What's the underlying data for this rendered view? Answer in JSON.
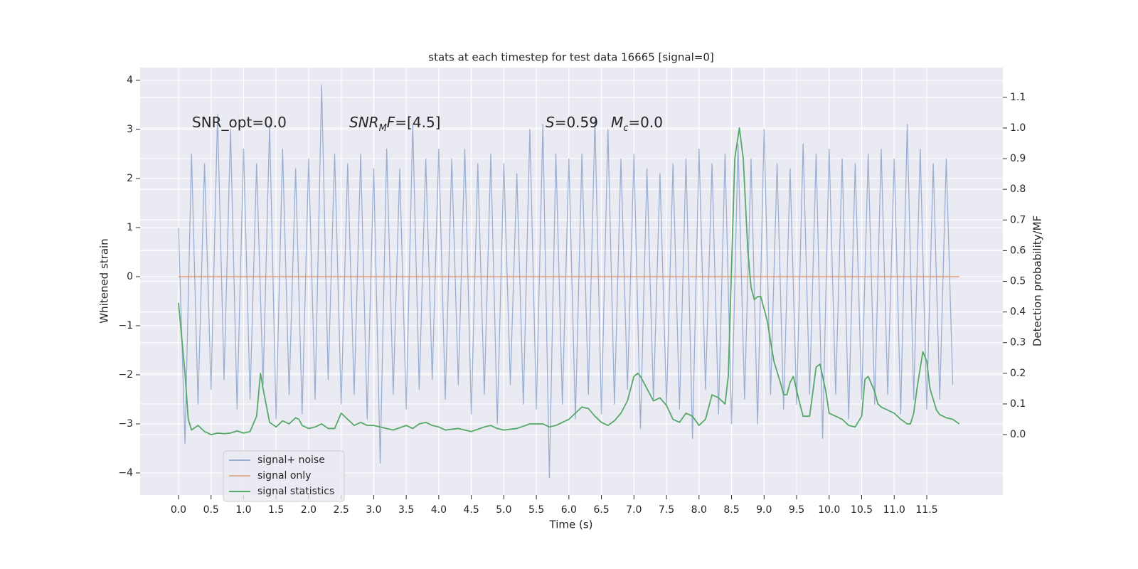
{
  "chart_data": {
    "type": "line",
    "title": "stats at each timestep for test data 16665 [signal=0]",
    "x_label": "Time (s)",
    "y_label": "Whitened strain",
    "y2_label": "Detection probability/MF",
    "xlim": [
      -0.59,
      12.67
    ],
    "ylim": [
      -4.45,
      4.26
    ],
    "y2lim": [
      -0.197,
      1.197
    ],
    "grid": true,
    "legend": "lower left",
    "xticks": [
      {
        "value": 0,
        "label": "0.0"
      },
      {
        "value": 0.5,
        "label": "0.5"
      },
      {
        "value": 1,
        "label": "1.0"
      },
      {
        "value": 1.5,
        "label": "1.5"
      },
      {
        "value": 2,
        "label": "2.0"
      },
      {
        "value": 2.5,
        "label": "2.5"
      },
      {
        "value": 3,
        "label": "3.0"
      },
      {
        "value": 3.5,
        "label": "3.5"
      },
      {
        "value": 4,
        "label": "4.0"
      },
      {
        "value": 4.5,
        "label": "4.5"
      },
      {
        "value": 5,
        "label": "5.0"
      },
      {
        "value": 5.5,
        "label": "5.5"
      },
      {
        "value": 6,
        "label": "6.0"
      },
      {
        "value": 6.5,
        "label": "6.5"
      },
      {
        "value": 7,
        "label": "7.0"
      },
      {
        "value": 7.5,
        "label": "7.5"
      },
      {
        "value": 8,
        "label": "8.0"
      },
      {
        "value": 8.5,
        "label": "8.5"
      },
      {
        "value": 9,
        "label": "9.0"
      },
      {
        "value": 9.5,
        "label": "9.5"
      },
      {
        "value": 10,
        "label": "10.0"
      },
      {
        "value": 10.5,
        "label": "10.5"
      },
      {
        "value": 11,
        "label": "11.0"
      },
      {
        "value": 11.5,
        "label": "11.5"
      }
    ],
    "yticks": [
      {
        "value": -4,
        "label": "−4"
      },
      {
        "value": -3,
        "label": "−3"
      },
      {
        "value": -2,
        "label": "−2"
      },
      {
        "value": -1,
        "label": "−1"
      },
      0,
      1,
      2,
      3,
      4
    ],
    "y2ticks": [
      {
        "value": 0,
        "label": "0.0"
      },
      {
        "value": 0.1,
        "label": "0.1"
      },
      {
        "value": 0.2,
        "label": "0.2"
      },
      {
        "value": 0.3,
        "label": "0.3"
      },
      {
        "value": 0.4,
        "label": "0.4"
      },
      {
        "value": 0.5,
        "label": "0.5"
      },
      {
        "value": 0.6,
        "label": "0.6"
      },
      {
        "value": 0.7,
        "label": "0.7"
      },
      {
        "value": 0.8,
        "label": "0.8"
      },
      {
        "value": 0.9,
        "label": "0.9"
      },
      {
        "value": 1,
        "label": "1.0"
      },
      {
        "value": 1.1,
        "label": "1.1"
      }
    ],
    "annotations": [
      [
        {
          "text": "SNR_opt=0.0"
        }
      ],
      [
        {
          "text": "SNR",
          "italic": true
        },
        {
          "text": "M",
          "italic": true,
          "sub": true
        },
        {
          "text": "F",
          "italic": true
        },
        {
          "text": "=[4.5]"
        }
      ],
      [
        {
          "text": "S",
          "italic": true
        },
        {
          "text": "=0.59"
        }
      ],
      [
        {
          "text": "M",
          "italic": true
        },
        {
          "text": "c",
          "italic": true,
          "sub": true
        },
        {
          "text": "=0.0"
        }
      ]
    ],
    "series": [
      {
        "name": "signal+ noise",
        "color": "#4c72b0",
        "opacity": 0.5,
        "x": [
          0,
          0.1,
          0.2,
          0.3,
          0.4,
          0.5,
          0.6,
          0.7,
          0.8,
          0.9,
          1,
          1.1,
          1.2,
          1.3,
          1.4,
          1.5,
          1.6,
          1.7,
          1.8,
          1.9,
          2,
          2.1,
          2.2,
          2.3,
          2.4,
          2.5,
          2.6,
          2.7,
          2.8,
          2.9,
          3,
          3.1,
          3.2,
          3.3,
          3.4,
          3.5,
          3.6,
          3.7,
          3.8,
          3.9,
          4,
          4.1,
          4.2,
          4.3,
          4.4,
          4.5,
          4.6,
          4.7,
          4.8,
          4.9,
          5,
          5.1,
          5.2,
          5.3,
          5.4,
          5.5,
          5.6,
          5.7,
          5.8,
          5.9,
          6,
          6.1,
          6.2,
          6.3,
          6.4,
          6.5,
          6.6,
          6.7,
          6.8,
          6.9,
          7,
          7.1,
          7.2,
          7.3,
          7.4,
          7.5,
          7.6,
          7.7,
          7.8,
          7.9,
          8,
          8.1,
          8.2,
          8.3,
          8.4,
          8.5,
          8.6,
          8.7,
          8.8,
          8.9,
          9,
          9.1,
          9.2,
          9.3,
          9.4,
          9.5,
          9.6,
          9.7,
          9.8,
          9.9,
          10,
          10.1,
          10.2,
          10.3,
          10.4,
          10.5,
          10.6,
          10.7,
          10.8,
          10.9,
          11,
          11.1,
          11.2,
          11.3,
          11.4,
          11.5,
          11.6,
          11.7,
          11.8,
          11.9
        ],
        "values": [
          1.0,
          -3.4,
          2.5,
          -2.6,
          2.3,
          -2.3,
          3.3,
          -2.1,
          3.0,
          -2.7,
          2.6,
          -2.5,
          2.3,
          -2.2,
          3.1,
          -2.9,
          2.6,
          -2.4,
          2.2,
          -2.8,
          2.4,
          -2.5,
          3.9,
          -2.1,
          2.5,
          -2.6,
          2.3,
          -2.4,
          2.5,
          -2.9,
          2.2,
          -3.8,
          2.6,
          -2.4,
          2.2,
          -2.7,
          3.1,
          -2.3,
          2.4,
          -2.1,
          2.6,
          -2.5,
          2.4,
          -2.2,
          2.6,
          -2.8,
          2.3,
          -2.4,
          2.5,
          -3.0,
          2.3,
          -2.2,
          2.1,
          -2.6,
          3.0,
          -2.7,
          3.1,
          -4.1,
          2.5,
          -2.6,
          2.4,
          -2.9,
          2.5,
          -2.4,
          3.2,
          -2.8,
          3.0,
          -2.6,
          2.4,
          -2.3,
          2.5,
          -3.1,
          2.2,
          -2.5,
          2.1,
          -2.6,
          2.3,
          -2.7,
          2.4,
          -3.3,
          2.6,
          -2.3,
          2.3,
          -2.8,
          2.5,
          -3.0,
          2.7,
          -2.5,
          2.4,
          -3.0,
          3.0,
          -2.4,
          2.3,
          -2.7,
          2.2,
          -2.6,
          2.7,
          -2.4,
          2.5,
          -3.3,
          2.6,
          -2.4,
          2.4,
          -2.9,
          2.3,
          -2.5,
          2.5,
          -2.6,
          2.6,
          -2.4,
          2.4,
          -2.8,
          3.1,
          -2.5,
          2.6,
          -2.7,
          2.3,
          -2.5,
          2.4,
          -2.2
        ]
      },
      {
        "name": "signal only",
        "color": "#dd8452",
        "opacity": 0.6,
        "x": [
          0,
          12
        ],
        "values": [
          0,
          0
        ]
      },
      {
        "name": "signal statistics",
        "color": "#55a868",
        "opacity": 1,
        "axis": "y2",
        "x": [
          0,
          0.1,
          0.15,
          0.2,
          0.3,
          0.4,
          0.5,
          0.6,
          0.7,
          0.8,
          0.9,
          1.0,
          1.1,
          1.2,
          1.26,
          1.3,
          1.4,
          1.5,
          1.6,
          1.7,
          1.8,
          1.85,
          1.9,
          2.0,
          2.1,
          2.2,
          2.3,
          2.4,
          2.5,
          2.6,
          2.7,
          2.8,
          2.9,
          3.0,
          3.1,
          3.2,
          3.3,
          3.5,
          3.6,
          3.7,
          3.8,
          3.9,
          4.0,
          4.1,
          4.3,
          4.5,
          4.7,
          4.8,
          4.9,
          5.0,
          5.2,
          5.4,
          5.6,
          5.7,
          5.8,
          6.0,
          6.1,
          6.2,
          6.3,
          6.4,
          6.5,
          6.6,
          6.7,
          6.8,
          6.9,
          7.0,
          7.06,
          7.1,
          7.2,
          7.3,
          7.4,
          7.5,
          7.6,
          7.7,
          7.8,
          7.9,
          8.0,
          8.1,
          8.2,
          8.3,
          8.4,
          8.45,
          8.55,
          8.62,
          8.68,
          8.75,
          8.8,
          8.85,
          8.9,
          8.95,
          9.05,
          9.15,
          9.25,
          9.3,
          9.35,
          9.4,
          9.45,
          9.55,
          9.6,
          9.7,
          9.8,
          9.86,
          9.95,
          10.0,
          10.1,
          10.2,
          10.3,
          10.4,
          10.5,
          10.55,
          10.6,
          10.7,
          10.75,
          10.8,
          10.9,
          11.0,
          11.1,
          11.2,
          11.25,
          11.3,
          11.35,
          11.44,
          11.5,
          11.55,
          11.65,
          11.7,
          11.8,
          11.9,
          12.0
        ],
        "values": [
          0.43,
          0.2,
          0.05,
          0.015,
          0.03,
          0.01,
          0.0,
          0.005,
          0.003,
          0.005,
          0.012,
          0.005,
          0.01,
          0.06,
          0.2,
          0.15,
          0.04,
          0.025,
          0.045,
          0.035,
          0.055,
          0.05,
          0.03,
          0.02,
          0.025,
          0.035,
          0.02,
          0.02,
          0.07,
          0.05,
          0.03,
          0.04,
          0.03,
          0.03,
          0.025,
          0.02,
          0.015,
          0.03,
          0.02,
          0.035,
          0.04,
          0.03,
          0.025,
          0.015,
          0.02,
          0.01,
          0.025,
          0.03,
          0.02,
          0.015,
          0.02,
          0.035,
          0.035,
          0.025,
          0.03,
          0.05,
          0.07,
          0.09,
          0.085,
          0.06,
          0.04,
          0.03,
          0.045,
          0.07,
          0.11,
          0.19,
          0.2,
          0.19,
          0.15,
          0.11,
          0.12,
          0.095,
          0.05,
          0.04,
          0.07,
          0.06,
          0.03,
          0.05,
          0.13,
          0.12,
          0.1,
          0.19,
          0.9,
          1.0,
          0.9,
          0.6,
          0.48,
          0.44,
          0.45,
          0.45,
          0.37,
          0.24,
          0.17,
          0.13,
          0.13,
          0.17,
          0.19,
          0.1,
          0.06,
          0.06,
          0.22,
          0.23,
          0.14,
          0.07,
          0.06,
          0.05,
          0.03,
          0.025,
          0.06,
          0.18,
          0.19,
          0.14,
          0.1,
          0.09,
          0.08,
          0.07,
          0.05,
          0.035,
          0.035,
          0.07,
          0.15,
          0.27,
          0.24,
          0.15,
          0.08,
          0.065,
          0.055,
          0.05,
          0.035
        ]
      }
    ]
  }
}
